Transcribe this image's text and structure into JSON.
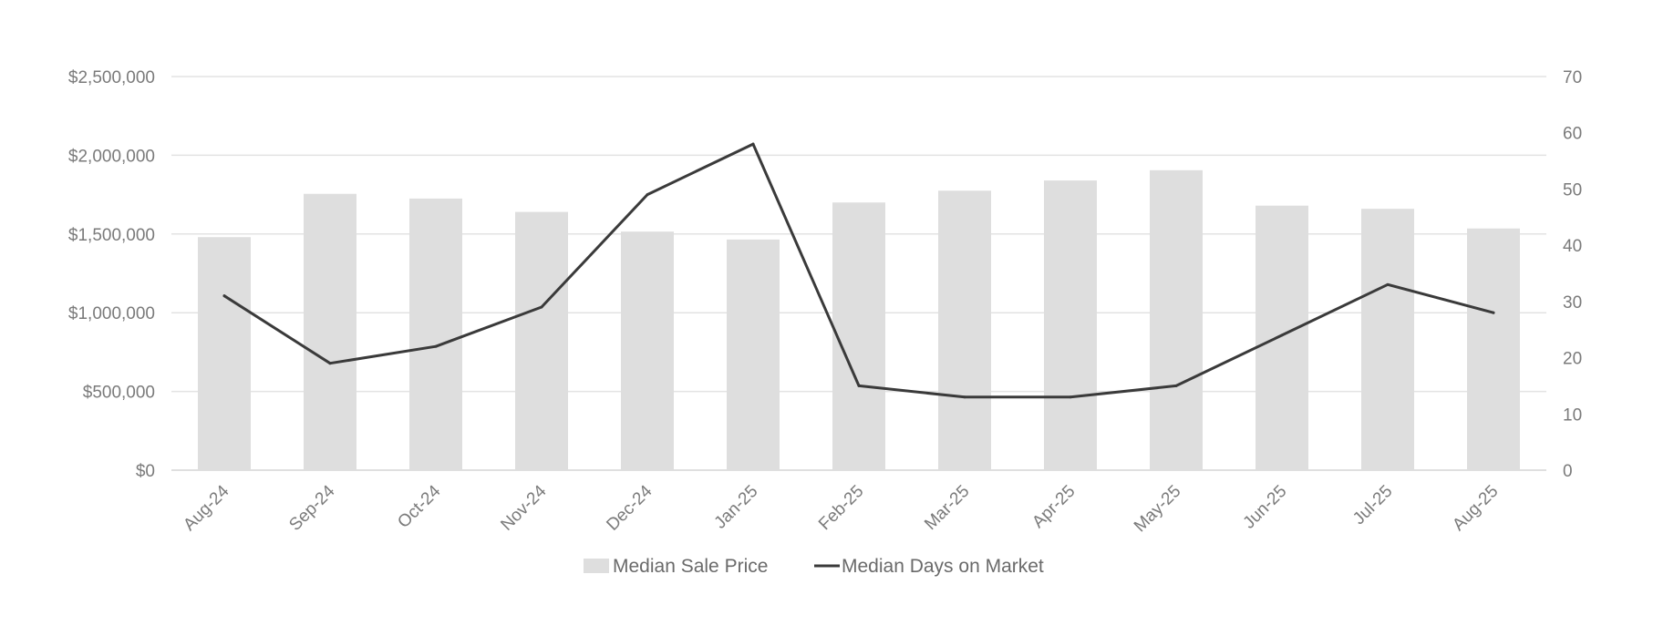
{
  "chart_data": {
    "type": "bar",
    "categories": [
      "Aug-24",
      "Sep-24",
      "Oct-24",
      "Nov-24",
      "Dec-24",
      "Jan-25",
      "Feb-25",
      "Mar-25",
      "Apr-25",
      "May-25",
      "Jun-25",
      "Jul-25",
      "Aug-25"
    ],
    "series": [
      {
        "name": "Median Sale Price",
        "type": "bar",
        "axis": "left",
        "color": "#dedede",
        "values": [
          1480000,
          1755000,
          1725000,
          1640000,
          1515000,
          1465000,
          1700000,
          1775000,
          1840000,
          1905000,
          1680000,
          1660000,
          1535000
        ]
      },
      {
        "name": "Median Days on Market",
        "type": "line",
        "axis": "right",
        "color": "#3a3a3a",
        "values": [
          31,
          19,
          22,
          29,
          49,
          58,
          15,
          13,
          13,
          15,
          24,
          33,
          28
        ]
      }
    ],
    "y_left": {
      "min": 0,
      "max": 2500000,
      "ticks": [
        0,
        500000,
        1000000,
        1500000,
        2000000,
        2500000
      ],
      "tick_labels": [
        "$0",
        "$500,000",
        "$1,000,000",
        "$1,500,000",
        "$2,000,000",
        "$2,500,000"
      ]
    },
    "y_right": {
      "min": 0,
      "max": 70,
      "ticks": [
        0,
        10,
        20,
        30,
        40,
        50,
        60,
        70
      ],
      "tick_labels": [
        "0",
        "10",
        "20",
        "30",
        "40",
        "50",
        "60",
        "70"
      ]
    },
    "grid": true,
    "legend": "bottom-center",
    "title": "",
    "xlabel": "",
    "ylabel": "",
    "y2label": ""
  }
}
